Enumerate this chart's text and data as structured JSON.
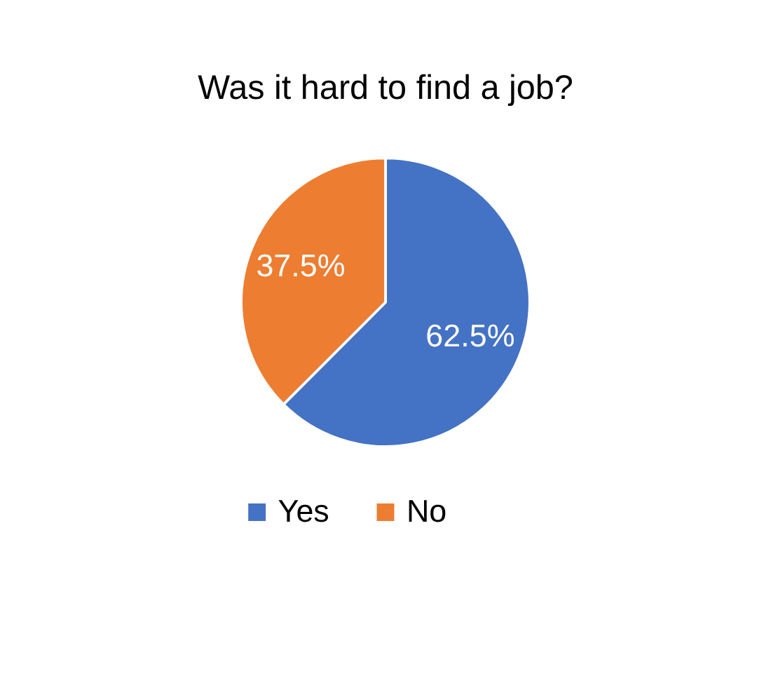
{
  "chart_data": {
    "type": "pie",
    "title": "Was it hard to find a job?",
    "categories": [
      "Yes",
      "No"
    ],
    "values": [
      62.5,
      37.5
    ],
    "colors": [
      "#4472c4",
      "#ed7d31"
    ],
    "value_labels": [
      "62.5%",
      "37.5%"
    ],
    "legend": "bottom"
  }
}
